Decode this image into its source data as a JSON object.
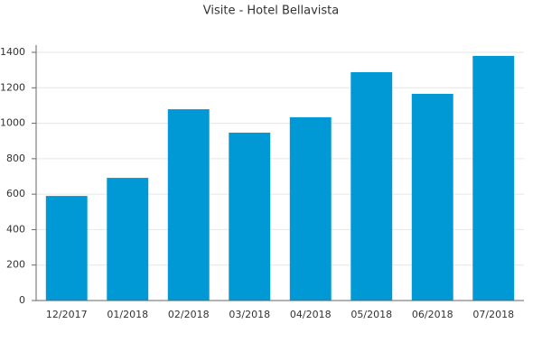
{
  "chart_data": {
    "type": "bar",
    "title": "Visite - Hotel Bellavista",
    "categories": [
      "12/2017",
      "01/2018",
      "02/2018",
      "03/2018",
      "04/2018",
      "05/2018",
      "06/2018",
      "07/2018"
    ],
    "values": [
      590,
      692,
      1079,
      947,
      1034,
      1288,
      1166,
      1380
    ],
    "color": "#0099d6",
    "ylim": [
      0,
      1400
    ],
    "yticks": [
      0,
      200,
      400,
      600,
      800,
      1000,
      1200,
      1400
    ],
    "grid": true
  }
}
